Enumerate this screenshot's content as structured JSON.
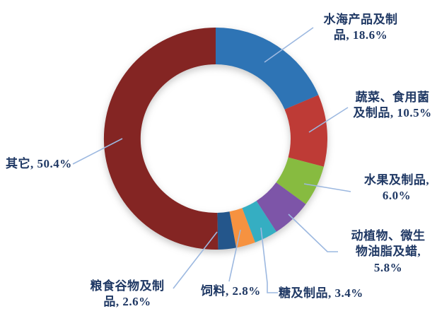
{
  "chart_data": {
    "type": "pie",
    "variant": "donut",
    "direction": "clockwise",
    "start_angle_deg": 0,
    "hole_ratio": 0.67,
    "legend": "none",
    "labels_style": "outside-callouts-with-leader-lines",
    "unit": "%",
    "categories": [
      "水海产品及制品",
      "蔬菜、食用菌及制品",
      "水果及制品",
      "动植物、微生物油脂及蜡",
      "糖及制品",
      "饲料",
      "粮食谷物及制品",
      "其它"
    ],
    "values": [
      18.6,
      10.5,
      6.0,
      5.8,
      3.4,
      2.8,
      2.6,
      50.4
    ],
    "slices": [
      {
        "label": "水海产品及制品",
        "value": 18.6,
        "display": "水海产品及制品, 18.6%",
        "color": "#2E74B5"
      },
      {
        "label": "蔬菜、食用菌及制品",
        "value": 10.5,
        "display": "蔬菜、食用菌及制品, 10.5%",
        "color": "#BE3B36"
      },
      {
        "label": "水果及制品",
        "value": 6.0,
        "display": "水果及制品, 6.0%",
        "color": "#87BB40"
      },
      {
        "label": "动植物、微生物油脂及蜡",
        "value": 5.8,
        "display": "动植物、微生物油脂及蜡, 5.8%",
        "color": "#7D55A8"
      },
      {
        "label": "糖及制品",
        "value": 3.4,
        "display": "糖及制品, 3.4%",
        "color": "#35AEC2"
      },
      {
        "label": "饲料",
        "value": 2.8,
        "display": "饲料, 2.8%",
        "color": "#F69240"
      },
      {
        "label": "粮食谷物及制品",
        "value": 2.6,
        "display": "粮食谷物及制品, 2.6%",
        "color": "#24568B"
      },
      {
        "label": "其它",
        "value": 50.4,
        "display": "其它, 50.4%",
        "color": "#842523"
      }
    ],
    "colors": {
      "label_text": "#1F3864",
      "leader_line": "#9CB8E0",
      "background": "#FFFFFF"
    }
  }
}
